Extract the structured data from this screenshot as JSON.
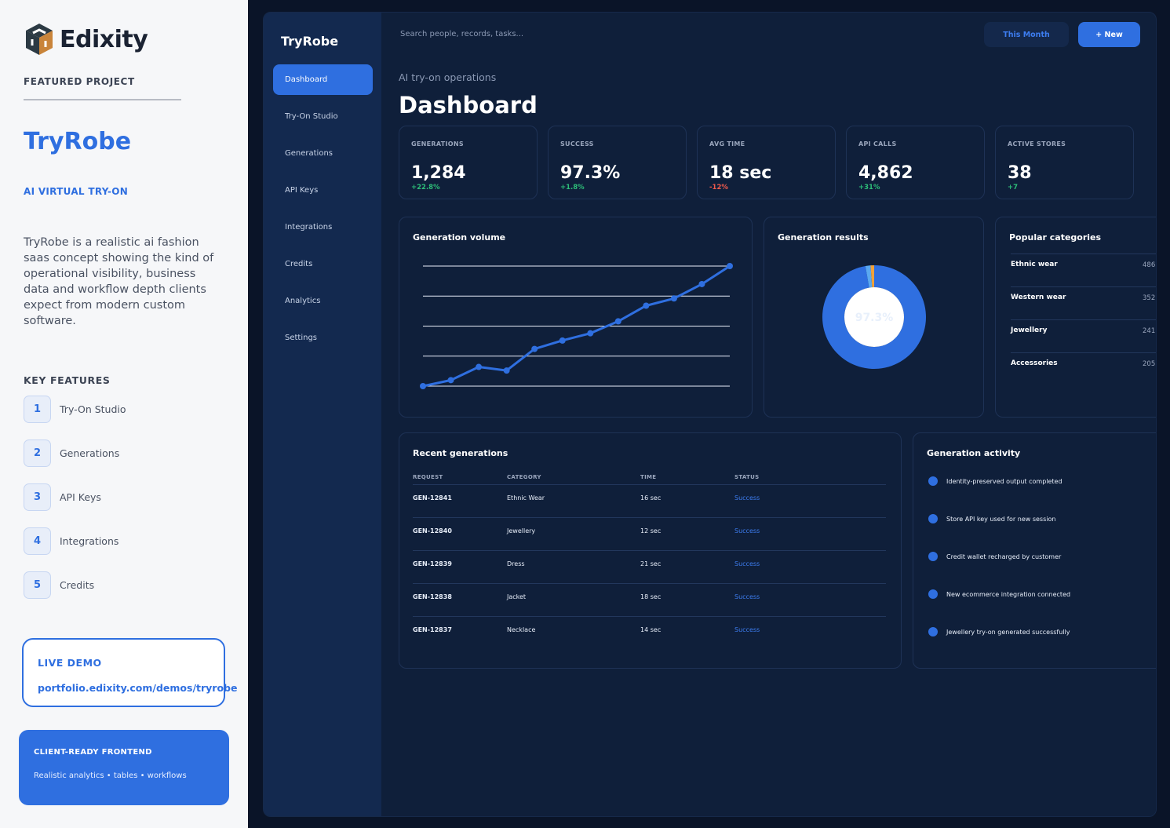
{
  "promo": {
    "logo_text": "Edixity",
    "featured_label": "FEATURED PROJECT",
    "project_title": "TryRobe",
    "project_subtitle": "AI VIRTUAL TRY-ON",
    "description": "TryRobe is a realistic ai fashion saas concept showing the kind of operational visibility, business data and workflow depth clients expect from modern custom software.",
    "key_features_label": "KEY FEATURES",
    "key_features": [
      {
        "num": "1",
        "label": "Try-On Studio"
      },
      {
        "num": "2",
        "label": "Generations"
      },
      {
        "num": "3",
        "label": "API Keys"
      },
      {
        "num": "4",
        "label": "Integrations"
      },
      {
        "num": "5",
        "label": "Credits"
      }
    ],
    "live_demo_label": "LIVE DEMO",
    "live_demo_url": "portfolio.edixity.com/demos/tryrobe",
    "client_title": "CLIENT-READY FRONTEND",
    "client_sub": "Realistic analytics • tables • workflows"
  },
  "app": {
    "brand": "TryRobe",
    "nav": [
      "Dashboard",
      "Try-On Studio",
      "Generations",
      "API Keys",
      "Integrations",
      "Credits",
      "Analytics",
      "Settings"
    ],
    "active_nav": "Dashboard",
    "search_placeholder": "Search people, records, tasks...",
    "btn_month": "This Month",
    "btn_new": "+ New",
    "subtitle": "AI try-on operations",
    "title": "Dashboard",
    "stats": [
      {
        "label": "GENERATIONS",
        "value": "1,284",
        "delta": "+22.8%",
        "trend": "up"
      },
      {
        "label": "SUCCESS",
        "value": "97.3%",
        "delta": "+1.8%",
        "trend": "up"
      },
      {
        "label": "AVG TIME",
        "value": "18 sec",
        "delta": "-12%",
        "trend": "down"
      },
      {
        "label": "API CALLS",
        "value": "4,862",
        "delta": "+31%",
        "trend": "up"
      },
      {
        "label": "ACTIVE STORES",
        "value": "38",
        "delta": "+7",
        "trend": "up"
      }
    ],
    "volume_title": "Generation volume",
    "results_title": "Generation results",
    "results_center": "97.3%",
    "categories_title": "Popular categories",
    "categories": [
      {
        "name": "Ethnic wear",
        "count": "486"
      },
      {
        "name": "Western wear",
        "count": "352"
      },
      {
        "name": "Jewellery",
        "count": "241"
      },
      {
        "name": "Accessories",
        "count": "205"
      }
    ],
    "recent_title": "Recent generations",
    "table_headers": [
      "REQUEST",
      "CATEGORY",
      "TIME",
      "STATUS"
    ],
    "table_rows": [
      {
        "request": "GEN-12841",
        "category": "Ethnic Wear",
        "time": "16 sec",
        "status": "Success"
      },
      {
        "request": "GEN-12840",
        "category": "Jewellery",
        "time": "12 sec",
        "status": "Success"
      },
      {
        "request": "GEN-12839",
        "category": "Dress",
        "time": "21 sec",
        "status": "Success"
      },
      {
        "request": "GEN-12838",
        "category": "Jacket",
        "time": "18 sec",
        "status": "Success"
      },
      {
        "request": "GEN-12837",
        "category": "Necklace",
        "time": "14 sec",
        "status": "Success"
      }
    ],
    "activity_title": "Generation activity",
    "activity": [
      "Identity-preserved output completed",
      "Store API key used for new session",
      "Credit wallet recharged by customer",
      "New ecommerce integration connected",
      "Jewellery try-on generated successfully"
    ]
  },
  "colors": {
    "accent": "#2f6fe0",
    "app_bg": "#0f1f3a",
    "sidebar_bg": "#13294f",
    "positive": "#2dbd78",
    "negative": "#f25a4c",
    "donut_main": "#2f6fe0",
    "donut_secondary": "#5aa9f0",
    "donut_tertiary": "#f0a23c"
  },
  "chart_data": [
    {
      "type": "line",
      "title": "Generation volume",
      "x": [
        1,
        2,
        3,
        4,
        5,
        6,
        7,
        8,
        9,
        10,
        11,
        12
      ],
      "series": [
        {
          "values": [
            0,
            5,
            16,
            13,
            31,
            38,
            44,
            54,
            67,
            73,
            85,
            100
          ]
        }
      ],
      "ylim": [
        0,
        100
      ],
      "grid": true,
      "show_axes_labels": false
    },
    {
      "type": "pie",
      "title": "Generation results",
      "center_label": "97.3%",
      "slices": [
        {
          "value": 97.3,
          "color": "#2f6fe0"
        },
        {
          "value": 1.6,
          "color": "#5aa9f0"
        },
        {
          "value": 1.1,
          "color": "#f0a23c"
        }
      ]
    }
  ]
}
